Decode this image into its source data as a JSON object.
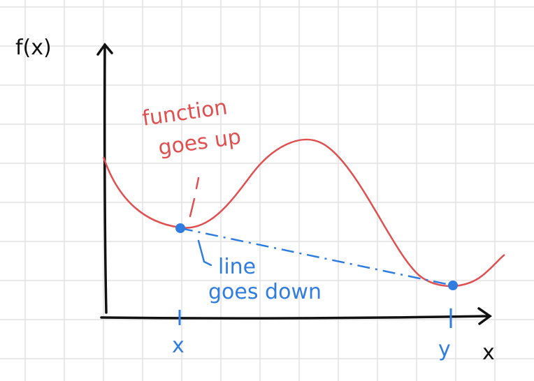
{
  "axis_labels": {
    "y": "f(x)",
    "x": "x"
  },
  "annotations": {
    "function": [
      "function",
      "goes up"
    ],
    "line": [
      "line",
      "goes down"
    ]
  },
  "points": [
    "x",
    "y"
  ]
}
